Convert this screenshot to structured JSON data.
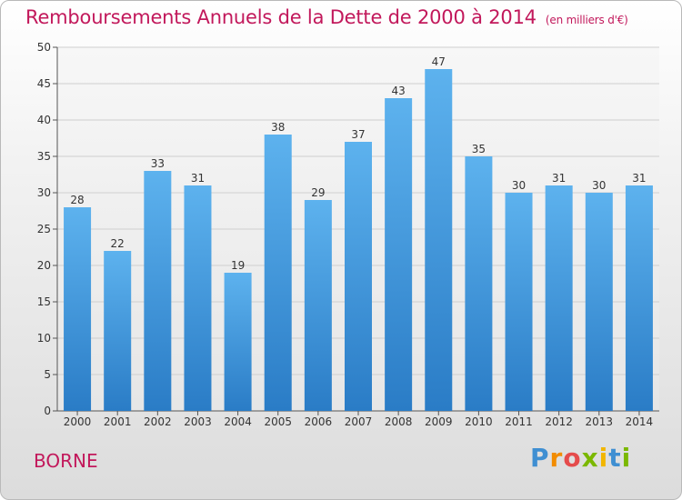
{
  "chart_data": {
    "type": "bar",
    "title": "Remboursements Annuels de la Dette de 2000 à 2014",
    "unit_note": "(en milliers d'€)",
    "categories": [
      "2000",
      "2001",
      "2002",
      "2003",
      "2004",
      "2005",
      "2006",
      "2007",
      "2008",
      "2009",
      "2010",
      "2011",
      "2012",
      "2013",
      "2014"
    ],
    "values": [
      28,
      22,
      33,
      31,
      19,
      38,
      29,
      37,
      43,
      47,
      35,
      30,
      31,
      30,
      31
    ],
    "ylim": [
      0,
      50
    ],
    "yticks": [
      0,
      5,
      10,
      15,
      20,
      25,
      30,
      35,
      40,
      45,
      50
    ],
    "grid": true,
    "bar_color": "#3a8fd6",
    "title_color": "#c2185b"
  },
  "footer": {
    "commune": "BORNE",
    "logo_letters": [
      "P",
      "r",
      "o",
      "x",
      "i",
      "t",
      "i"
    ]
  }
}
